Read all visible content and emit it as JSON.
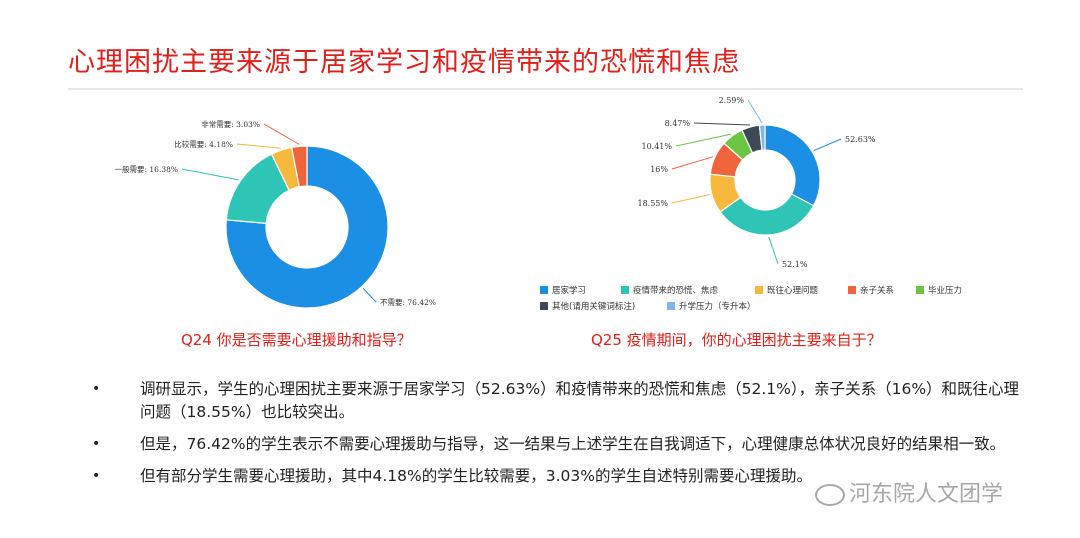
{
  "slide": {
    "title": "心理困扰主要来源于居家学习和疫情带来的恐慌和焦虑"
  },
  "chart_data": [
    {
      "type": "pie",
      "title": "Q24 你是否需要心理援助和指导？",
      "categories": [
        "不需要",
        "一般需要",
        "比较需要",
        "非常需要"
      ],
      "values": [
        76.42,
        16.38,
        4.18,
        3.03
      ],
      "labels": [
        "不需要: 76.42%",
        "一般需要: 16.38%",
        "比较需要: 4.18%",
        "非常需要: 3.03%"
      ],
      "colors": [
        "#1a8fe3",
        "#2ec4b6",
        "#f6b93b",
        "#f0643c"
      ],
      "legend": "none"
    },
    {
      "type": "pie",
      "title": "Q25 疫情期间，你的心理困扰主要来自于？",
      "categories": [
        "居家学习",
        "疫情带来的恐慌、焦虑",
        "既往心理问题",
        "亲子关系",
        "毕业压力",
        "其他(请用关键词标注)",
        "升学压力（专升本）"
      ],
      "values": [
        52.63,
        52.1,
        18.55,
        16,
        10.41,
        8.47,
        2.59
      ],
      "labels": [
        "52.63%",
        "52.1%",
        "18.55%",
        "16%",
        "10.41%",
        "8.47%",
        "2.59%"
      ],
      "colors": [
        "#1a8fe3",
        "#2ec4b6",
        "#f6b93b",
        "#f0643c",
        "#6cc644",
        "#3d4a55",
        "#7fb8e6"
      ],
      "legend": "bottom"
    }
  ],
  "bullets": [
    "调研显示，学生的心理困扰主要来源于居家学习（52.63%）和疫情带来的恐慌和焦虑（52.1%），亲子关系（16%）和既往心理问题（18.55%）也比较突出。",
    "但是，76.42%的学生表示不需要心理援助与指导，这一结果与上述学生在自我调适下，心理健康总体状况良好的结果相一致。",
    "但有部分学生需要心理援助，其中4.18%的学生比较需要，3.03%的学生自述特别需要心理援助。"
  ],
  "bullet_marker": "•",
  "watermark": "河东院人文团学"
}
